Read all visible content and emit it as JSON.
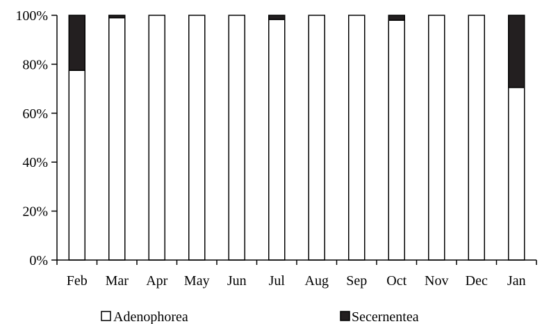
{
  "chart_data": {
    "type": "bar",
    "stacked": true,
    "normalized": true,
    "categories": [
      "Feb",
      "Mar",
      "Apr",
      "May",
      "Jun",
      "Jul",
      "Aug",
      "Sep",
      "Oct",
      "Nov",
      "Dec",
      "Jan"
    ],
    "series": [
      {
        "name": "Adenophorea",
        "color": "#ffffff",
        "values": [
          77.5,
          99,
          100,
          100,
          100,
          98.3,
          100,
          100,
          98,
          100,
          100,
          70.5
        ]
      },
      {
        "name": "Secernentea",
        "color": "#231f20",
        "values": [
          22.5,
          1,
          0,
          0,
          0,
          1.7,
          0,
          0,
          2,
          0,
          0,
          29.5
        ]
      }
    ],
    "y_ticks": [
      "0%",
      "20%",
      "40%",
      "60%",
      "80%",
      "100%"
    ],
    "ylim": [
      0,
      100
    ],
    "grid": false,
    "legend_position": "bottom"
  }
}
